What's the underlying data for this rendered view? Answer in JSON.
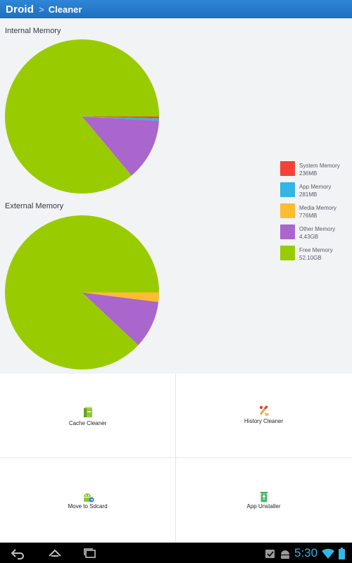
{
  "header": {
    "app_name": "Droid",
    "separator": ">",
    "page_title": "Cleaner"
  },
  "colors": {
    "system": "#f44336",
    "app": "#33b5e5",
    "media": "#fdbc32",
    "other": "#aa66cc",
    "free": "#99cc00",
    "title_bar": "#2174c4"
  },
  "internal": {
    "title": "Internal Memory",
    "fractions": {
      "system": 0.0042,
      "app": 0.0049,
      "media": 0.0,
      "other": 0.13,
      "free": 0.861
    }
  },
  "external": {
    "title": "External Memory",
    "fractions": {
      "system": 0.0,
      "app": 0.0,
      "media": 0.02,
      "other": 0.1,
      "free": 0.88
    }
  },
  "legend": [
    {
      "key": "system",
      "name": "System Memory",
      "value": "236MB"
    },
    {
      "key": "app",
      "name": "App Memory",
      "value": "281MB"
    },
    {
      "key": "media",
      "name": "Media Memory",
      "value": "776MB"
    },
    {
      "key": "other",
      "name": "Other Memory",
      "value": "4.43GB"
    },
    {
      "key": "free",
      "name": "Free Memory",
      "value": "52.10GB"
    }
  ],
  "tools": [
    {
      "label": "Cache Cleaner",
      "icon": "cache-cleaner-icon"
    },
    {
      "label": "History Cleaner",
      "icon": "history-cleaner-icon"
    },
    {
      "label": "Move to Sdcard",
      "icon": "move-to-sdcard-icon"
    },
    {
      "label": "App Unstaller",
      "icon": "app-uninstaller-icon"
    }
  ],
  "status_bar": {
    "time": "5:30"
  }
}
